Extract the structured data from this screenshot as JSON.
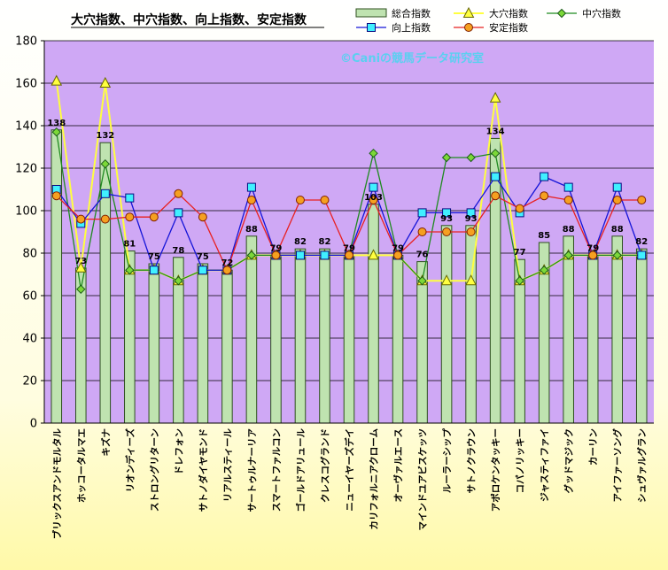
{
  "chart_data": {
    "type": "bar",
    "title": "大穴指数、中穴指数、向上指数、安定指数",
    "watermark": "©Caniの競馬データ研究室",
    "ylim": [
      0,
      180
    ],
    "yticks": [
      0,
      20,
      40,
      60,
      80,
      100,
      120,
      140,
      160,
      180
    ],
    "legend_position": "top-right",
    "colors": {
      "plot_bg": "#cfa8f5",
      "bar_fill": "#bfe3b0",
      "bar_stroke": "#2d4f1e",
      "daiana": "#ffff40",
      "chuana": "#1f8a1f",
      "kojo": "#1414d8",
      "kojo_marker": "#40f0ff",
      "antei": "#e82020",
      "antei_marker": "#f5a020"
    },
    "categories": [
      "ブリックスアンドモルタル",
      "ホッコータルマエ",
      "キズナ",
      "リオンディーズ",
      "ストロングリターン",
      "ドレフォン",
      "サトノダイヤモンド",
      "リアルスティール",
      "サートゥルナーリア",
      "スマートファルコン",
      "ゴールドアリュール",
      "クレスコグランド",
      "ニューイヤーズデイ",
      "カリフォルニアクローム",
      "オーヴァルエース",
      "マインドユアビスケッツ",
      "ルーラーシップ",
      "サトノクラウン",
      "アポロケンタッキー",
      "コパノリッキー",
      "ジャスティファイ",
      "グッドマジック",
      "カーリン",
      "アイファーソング",
      "シュヴァルグラン"
    ],
    "series": [
      {
        "name": "総合指数",
        "kind": "bar",
        "values": [
          138,
          73,
          132,
          81,
          75,
          78,
          75,
          72,
          88,
          79,
          82,
          82,
          79,
          103,
          79,
          76,
          93,
          93,
          134,
          77,
          85,
          88,
          79,
          88,
          82
        ],
        "labels": [
          "138",
          "73",
          "132",
          "81",
          "75",
          "78",
          "75",
          "72",
          "88",
          "79",
          "82",
          "82",
          "79",
          "103",
          "79",
          "76",
          "93",
          "93",
          "134",
          "77",
          "85",
          "88",
          "79",
          "88",
          "82"
        ]
      },
      {
        "name": "大穴指数",
        "kind": "line",
        "values": [
          161,
          73,
          160,
          72,
          72,
          67,
          72,
          72,
          79,
          79,
          79,
          79,
          79,
          79,
          79,
          67,
          67,
          67,
          153,
          67,
          72,
          79,
          79,
          79,
          79
        ]
      },
      {
        "name": "中穴指数",
        "kind": "line",
        "values": [
          137,
          63,
          122,
          72,
          72,
          67,
          72,
          72,
          79,
          79,
          79,
          79,
          79,
          127,
          79,
          67,
          125,
          125,
          127,
          67,
          72,
          79,
          79,
          79,
          79
        ]
      },
      {
        "name": "向上指数",
        "kind": "line",
        "values": [
          110,
          94,
          108,
          106,
          72,
          99,
          72,
          72,
          111,
          79,
          79,
          79,
          79,
          111,
          79,
          99,
          99,
          99,
          116,
          99,
          116,
          111,
          79,
          111,
          79
        ]
      },
      {
        "name": "安定指数",
        "kind": "line",
        "values": [
          107,
          96,
          96,
          97,
          97,
          108,
          97,
          72,
          105,
          79,
          105,
          105,
          79,
          105,
          79,
          90,
          90,
          90,
          107,
          101,
          107,
          105,
          79,
          105,
          105
        ]
      }
    ]
  }
}
